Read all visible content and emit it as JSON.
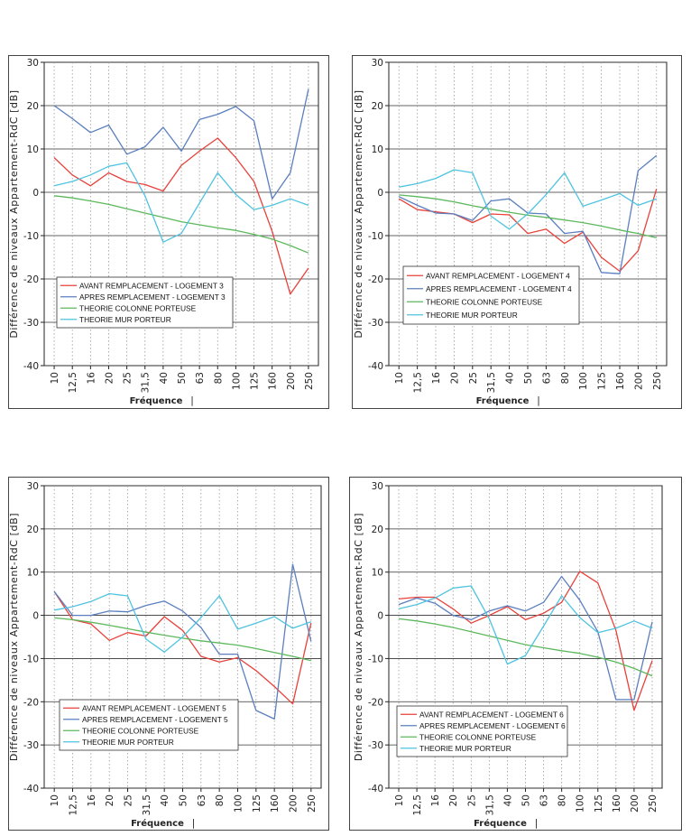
{
  "chart_data": [
    {
      "type": "line",
      "ylabel": "Différence de niveaux Appartement-RdC",
      "yunit": "[dB]",
      "xlabel": "Fréquence",
      "xunit": "|",
      "ylim": [
        -40,
        30
      ],
      "yticks": [
        -40,
        -30,
        -20,
        -10,
        0,
        10,
        20,
        30
      ],
      "categories": [
        "10",
        "12,5",
        "16",
        "20",
        "25",
        "31,5",
        "40",
        "50",
        "63",
        "80",
        "100",
        "125",
        "160",
        "200",
        "250"
      ],
      "grid": "horizontal solid, vertical dotted",
      "legend": "bottom-left",
      "series": [
        {
          "name": "AVANT REMPLACEMENT - LOGEMENT 3",
          "color": "#e8413a",
          "values": [
            8,
            4,
            1.5,
            4.5,
            2.5,
            1.8,
            0.3,
            6.2,
            9.5,
            12.5,
            8,
            2.5,
            -9,
            -23.5,
            -17.5
          ]
        },
        {
          "name": "APRES REMPLACEMENT - LOGEMENT 3",
          "color": "#5b7fbf",
          "values": [
            20,
            17,
            13.8,
            15.5,
            8.8,
            10.5,
            15,
            9.5,
            16.8,
            18,
            19.8,
            16.5,
            -1.5,
            4.5,
            23.8
          ]
        },
        {
          "name": "THEORIE COLONNE PORTEUSE",
          "color": "#5cb85c",
          "values": [
            -0.8,
            -1.3,
            -2,
            -2.8,
            -3.8,
            -4.8,
            -5.8,
            -6.8,
            -7.5,
            -8.2,
            -8.8,
            -9.7,
            -10.8,
            -12.3,
            -14
          ]
        },
        {
          "name": "THEORIE MUR PORTEUR",
          "color": "#4fc3e0",
          "values": [
            1.5,
            2.5,
            4,
            6,
            6.8,
            -0.8,
            -11.5,
            -9.5,
            -2.5,
            4.5,
            -0.5,
            -4,
            -3,
            -1.5,
            -3
          ]
        }
      ]
    },
    {
      "type": "line",
      "ylabel": "Différence de niveaux Appartement-RdC",
      "yunit": "[dB]",
      "xlabel": "Fréquence",
      "xunit": "|",
      "ylim": [
        -40,
        30
      ],
      "yticks": [
        -40,
        -30,
        -20,
        -10,
        0,
        10,
        20,
        30
      ],
      "categories": [
        "10",
        "12,5",
        "16",
        "20",
        "25",
        "31,5",
        "40",
        "50",
        "63",
        "80",
        "100",
        "125",
        "160",
        "200",
        "250"
      ],
      "grid": "horizontal solid, vertical dotted",
      "legend": "bottom-left",
      "series": [
        {
          "name": "AVANT REMPLACEMENT - LOGEMENT 4",
          "color": "#e8413a",
          "values": [
            -1.5,
            -4,
            -4.5,
            -5,
            -7,
            -5,
            -5.2,
            -9.5,
            -8.5,
            -11.8,
            -9.2,
            -15,
            -18.2,
            -13.5,
            0.8
          ]
        },
        {
          "name": "APRES REMPLACEMENT - LOGEMENT 4",
          "color": "#5b7fbf",
          "values": [
            -1,
            -3,
            -4.8,
            -5,
            -6.5,
            -2,
            -1.5,
            -4.8,
            -5,
            -9.5,
            -9,
            -18.5,
            -18.8,
            5,
            8.5
          ]
        },
        {
          "name": "THEORIE COLONNE PORTEUSE",
          "color": "#5cb85c",
          "values": [
            -0.6,
            -1,
            -1.5,
            -2.2,
            -3.1,
            -3.9,
            -4.6,
            -5.3,
            -5.8,
            -6.4,
            -7,
            -7.8,
            -8.7,
            -9.5,
            -10.5
          ]
        },
        {
          "name": "THEORIE MUR PORTEUR",
          "color": "#4fc3e0",
          "values": [
            1.2,
            2,
            3.2,
            5.2,
            4.5,
            -5.5,
            -8.5,
            -5,
            -0.5,
            4.5,
            -3.2,
            -1.8,
            -0.3,
            -3,
            -1.5
          ]
        }
      ]
    },
    {
      "type": "line",
      "ylabel": "Différence de niveaux Appartement-RdC",
      "yunit": "[dB]",
      "xlabel": "Fréquence",
      "xunit": "|",
      "ylim": [
        -40,
        30
      ],
      "yticks": [
        -40,
        -30,
        -20,
        -10,
        0,
        10,
        20,
        30
      ],
      "categories": [
        "10",
        "12,5",
        "16",
        "20",
        "25",
        "31,5",
        "40",
        "50",
        "63",
        "80",
        "100",
        "125",
        "160",
        "200",
        "250"
      ],
      "grid": "horizontal solid, vertical dotted",
      "legend": "bottom-left",
      "series": [
        {
          "name": "AVANT REMPLACEMENT - LOGEMENT 5",
          "color": "#e8413a",
          "values": [
            5.5,
            -1,
            -2,
            -5.8,
            -4,
            -4.8,
            -0.3,
            -3.5,
            -9.5,
            -10.8,
            -9.8,
            -12.8,
            -16.5,
            -20.5,
            -1.8
          ]
        },
        {
          "name": "APRES REMPLACEMENT - LOGEMENT 5",
          "color": "#5b7fbf",
          "values": [
            5.5,
            0,
            0,
            1,
            0.8,
            2.3,
            3.3,
            1,
            -2.8,
            -9,
            -9,
            -22,
            -24,
            11.8,
            -6
          ]
        },
        {
          "name": "THEORIE COLONNE PORTEUSE",
          "color": "#5cb85c",
          "values": [
            -0.6,
            -1,
            -1.6,
            -2.3,
            -3.1,
            -3.9,
            -4.6,
            -5.3,
            -5.9,
            -6.4,
            -6.9,
            -7.7,
            -8.6,
            -9.5,
            -10.5
          ]
        },
        {
          "name": "THEORIE MUR PORTEUR",
          "color": "#4fc3e0",
          "values": [
            1.2,
            2,
            3.2,
            5,
            4.5,
            -5.5,
            -8.5,
            -5,
            -0.5,
            4.5,
            -3.2,
            -1.8,
            -0.3,
            -3,
            -1.5
          ]
        }
      ]
    },
    {
      "type": "line",
      "ylabel": "Différence de niveaux Appartement-RdC",
      "yunit": "[dB]",
      "xlabel": "Fréquence",
      "xunit": "|",
      "ylim": [
        -40,
        30
      ],
      "yticks": [
        -40,
        -30,
        -20,
        -10,
        0,
        10,
        20,
        30
      ],
      "categories": [
        "10",
        "12,5",
        "16",
        "20",
        "25",
        "31,5",
        "40",
        "50",
        "63",
        "80",
        "100",
        "125",
        "160",
        "200",
        "250"
      ],
      "grid": "horizontal solid, vertical dotted",
      "legend": "bottom-left",
      "series": [
        {
          "name": "AVANT REMPLACEMENT - LOGEMENT 6",
          "color": "#e8413a",
          "values": [
            3.8,
            4.2,
            4.2,
            1.5,
            -1.8,
            0,
            2,
            -1,
            0.5,
            3,
            10.2,
            7.5,
            -3.5,
            -22,
            -10.5
          ]
        },
        {
          "name": "APRES REMPLACEMENT - LOGEMENT 6",
          "color": "#5b7fbf",
          "values": [
            2.5,
            4,
            2.8,
            0,
            -1,
            1,
            2.2,
            1,
            3,
            9,
            3.5,
            -3.8,
            -19.5,
            -19.5,
            -1.5
          ]
        },
        {
          "name": "THEORIE COLONNE PORTEUSE",
          "color": "#5cb85c",
          "values": [
            -0.8,
            -1.3,
            -2,
            -2.8,
            -3.8,
            -4.8,
            -5.8,
            -6.8,
            -7.5,
            -8.2,
            -8.8,
            -9.7,
            -10.8,
            -12.3,
            -14
          ]
        },
        {
          "name": "THEORIE MUR PORTEUR",
          "color": "#4fc3e0",
          "values": [
            1.5,
            2.5,
            4,
            6.3,
            6.8,
            -0.8,
            -11.3,
            -9.3,
            -2.5,
            4.5,
            -0.5,
            -4,
            -3,
            -1.3,
            -3
          ]
        }
      ]
    }
  ]
}
